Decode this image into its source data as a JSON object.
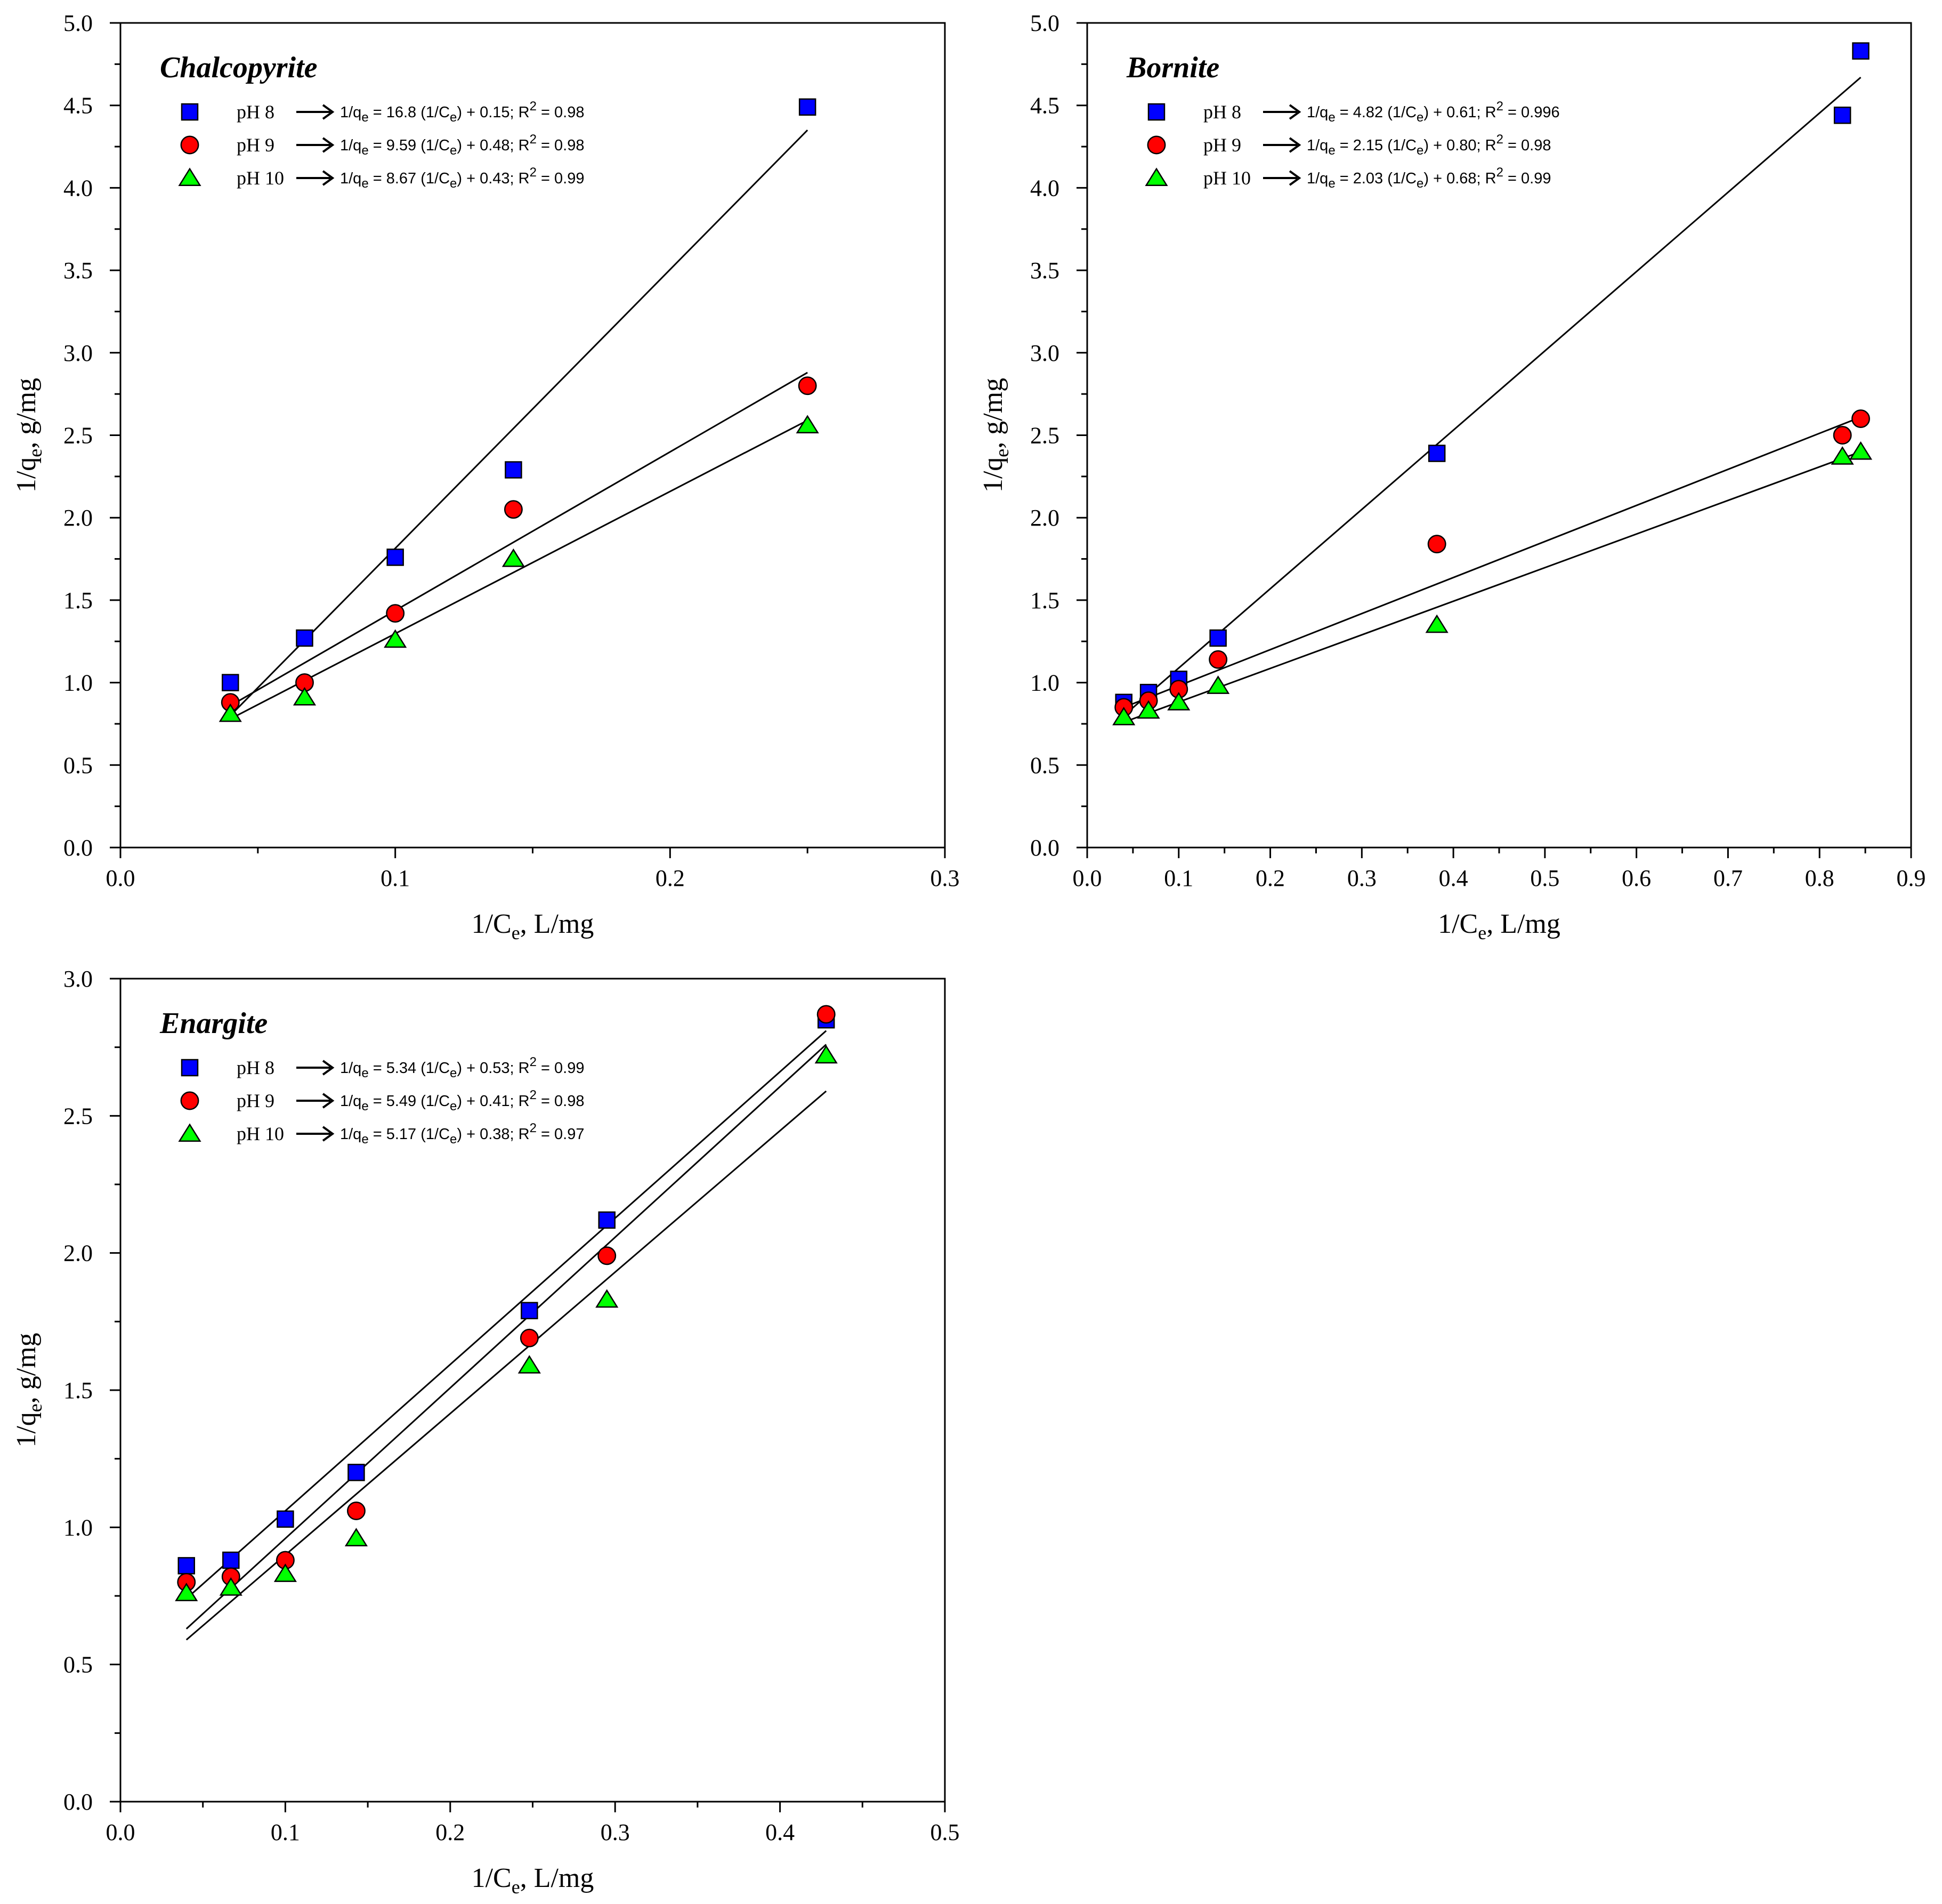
{
  "chart_data": [
    {
      "type": "scatter",
      "title": "Chalcopyrite",
      "xlabel_main": "1/C",
      "xlabel_sub": "e",
      "xlabel_rest": ", L/mg",
      "ylabel_main": "1/q",
      "ylabel_sub": "e",
      "ylabel_rest": ", g/mg",
      "xlim": [
        0,
        0.3
      ],
      "ylim": [
        0,
        5
      ],
      "xticks": [
        "0.0",
        "0.1",
        "0.2",
        "0.3"
      ],
      "xtick_values": [
        0,
        0.1,
        0.2,
        0.3
      ],
      "yticks": [
        "0.0",
        "0.5",
        "1.0",
        "1.5",
        "2.0",
        "2.5",
        "3.0",
        "3.5",
        "4.0",
        "4.5",
        "5.0"
      ],
      "ytick_values": [
        0,
        0.5,
        1,
        1.5,
        2,
        2.5,
        3,
        3.5,
        4,
        4.5,
        5
      ],
      "grid": false,
      "legend_position": "top-left",
      "series": [
        {
          "name": "pH 8",
          "marker": "square",
          "color": "#0000ff",
          "x": [
            0.04,
            0.067,
            0.1,
            0.143,
            0.25
          ],
          "y": [
            1.0,
            1.27,
            1.76,
            2.29,
            4.49
          ],
          "fit": {
            "x": [
              0.04,
              0.25
            ],
            "y": [
              0.8,
              4.35
            ]
          },
          "eq_pre": "1/q",
          "eq_sub": "e",
          "eq_mid": " = 16.8 (1/C",
          "eq_sub2": "e",
          "eq_post": ") + 0.15; R",
          "eq_sup": "2",
          "eq_end": " = 0.98"
        },
        {
          "name": "pH 9",
          "marker": "circle",
          "color": "#ff0000",
          "x": [
            0.04,
            0.067,
            0.1,
            0.143,
            0.25
          ],
          "y": [
            0.88,
            1.0,
            1.42,
            2.05,
            2.8
          ],
          "fit": {
            "x": [
              0.04,
              0.25
            ],
            "y": [
              0.86,
              2.88
            ]
          },
          "eq_pre": "1/q",
          "eq_sub": "e",
          "eq_mid": " = 9.59 (1/C",
          "eq_sub2": "e",
          "eq_post": ") + 0.48; R",
          "eq_sup": "2",
          "eq_end": " = 0.98"
        },
        {
          "name": "pH 10",
          "marker": "triangle",
          "color": "#00ff00",
          "x": [
            0.04,
            0.067,
            0.1,
            0.143,
            0.25
          ],
          "y": [
            0.81,
            0.91,
            1.26,
            1.75,
            2.56
          ],
          "fit": {
            "x": [
              0.04,
              0.25
            ],
            "y": [
              0.78,
              2.59
            ]
          },
          "eq_pre": "1/q",
          "eq_sub": "e",
          "eq_mid": " = 8.67 (1/C",
          "eq_sub2": "e",
          "eq_post": ") + 0.43; R",
          "eq_sup": "2",
          "eq_end": " = 0.99"
        }
      ]
    },
    {
      "type": "scatter",
      "title": "Bornite",
      "xlabel_main": "1/C",
      "xlabel_sub": "e",
      "xlabel_rest": ", L/mg",
      "ylabel_main": "1/q",
      "ylabel_sub": "e",
      "ylabel_rest": ", g/mg",
      "xlim": [
        0,
        0.9
      ],
      "ylim": [
        0,
        5
      ],
      "xticks": [
        "0.0",
        "0.1",
        "0.2",
        "0.3",
        "0.4",
        "0.5",
        "0.6",
        "0.7",
        "0.8",
        "0.9"
      ],
      "xtick_values": [
        0,
        0.1,
        0.2,
        0.3,
        0.4,
        0.5,
        0.6,
        0.7,
        0.8,
        0.9
      ],
      "yticks": [
        "0.0",
        "0.5",
        "1.0",
        "1.5",
        "2.0",
        "2.5",
        "3.0",
        "3.5",
        "4.0",
        "4.5",
        "5.0"
      ],
      "ytick_values": [
        0,
        0.5,
        1,
        1.5,
        2,
        2.5,
        3,
        3.5,
        4,
        4.5,
        5
      ],
      "grid": false,
      "legend_position": "top-left",
      "series": [
        {
          "name": "pH 8",
          "marker": "square",
          "color": "#0000ff",
          "x": [
            0.04,
            0.067,
            0.1,
            0.143,
            0.382,
            0.825,
            0.845
          ],
          "y": [
            0.88,
            0.94,
            1.02,
            1.27,
            2.39,
            4.44,
            4.83
          ],
          "fit": {
            "x": [
              0.04,
              0.845
            ],
            "y": [
              0.8,
              4.67
            ]
          },
          "eq_pre": "1/q",
          "eq_sub": "e",
          "eq_mid": " = 4.82 (1/C",
          "eq_sub2": "e",
          "eq_post": ") + 0.61; R",
          "eq_sup": "2",
          "eq_end": " = 0.996"
        },
        {
          "name": "pH 9",
          "marker": "circle",
          "color": "#ff0000",
          "x": [
            0.04,
            0.067,
            0.1,
            0.143,
            0.382,
            0.825,
            0.845
          ],
          "y": [
            0.85,
            0.89,
            0.96,
            1.14,
            1.84,
            2.5,
            2.6
          ],
          "fit": {
            "x": [
              0.04,
              0.845
            ],
            "y": [
              0.85,
              2.61
            ]
          },
          "eq_pre": "1/q",
          "eq_sub": "e",
          "eq_mid": " = 2.15 (1/C",
          "eq_sub2": "e",
          "eq_post": ") + 0.80; R",
          "eq_sup": "2",
          "eq_end": " = 0.98"
        },
        {
          "name": "pH 10",
          "marker": "triangle",
          "color": "#00ff00",
          "x": [
            0.04,
            0.067,
            0.1,
            0.143,
            0.382,
            0.825,
            0.845
          ],
          "y": [
            0.79,
            0.83,
            0.88,
            0.98,
            1.35,
            2.37,
            2.4
          ],
          "fit": {
            "x": [
              0.04,
              0.845
            ],
            "y": [
              0.76,
              2.4
            ]
          },
          "eq_pre": "1/q",
          "eq_sub": "e",
          "eq_mid": " = 2.03 (1/C",
          "eq_sub2": "e",
          "eq_post": ") + 0.68; R",
          "eq_sup": "2",
          "eq_end": " = 0.99"
        }
      ]
    },
    {
      "type": "scatter",
      "title": "Enargite",
      "xlabel_main": "1/C",
      "xlabel_sub": "e",
      "xlabel_rest": ", L/mg",
      "ylabel_main": "1/q",
      "ylabel_sub": "e",
      "ylabel_rest": ", g/mg",
      "xlim": [
        0,
        0.5
      ],
      "ylim": [
        0,
        3
      ],
      "xticks": [
        "0.0",
        "0.1",
        "0.2",
        "0.3",
        "0.4",
        "0.5"
      ],
      "xtick_values": [
        0,
        0.1,
        0.2,
        0.3,
        0.4,
        0.5
      ],
      "yticks": [
        "0.0",
        "0.5",
        "1.0",
        "1.5",
        "2.0",
        "2.5",
        "3.0"
      ],
      "ytick_values": [
        0,
        0.5,
        1,
        1.5,
        2,
        2.5,
        3
      ],
      "grid": false,
      "legend_position": "top-left",
      "series": [
        {
          "name": "pH 8",
          "marker": "square",
          "color": "#0000ff",
          "x": [
            0.04,
            0.067,
            0.1,
            0.143,
            0.248,
            0.295,
            0.428
          ],
          "y": [
            0.86,
            0.88,
            1.03,
            1.2,
            1.79,
            2.12,
            2.85
          ],
          "fit": {
            "x": [
              0.04,
              0.428
            ],
            "y": [
              0.74,
              2.81
            ]
          },
          "eq_pre": "1/q",
          "eq_sub": "e",
          "eq_mid": " = 5.34 (1/C",
          "eq_sub2": "e",
          "eq_post": ") + 0.53; R",
          "eq_sup": "2",
          "eq_end": " = 0.99"
        },
        {
          "name": "pH 9",
          "marker": "circle",
          "color": "#ff0000",
          "x": [
            0.04,
            0.067,
            0.1,
            0.143,
            0.248,
            0.295,
            0.428
          ],
          "y": [
            0.8,
            0.82,
            0.88,
            1.06,
            1.69,
            1.99,
            2.87
          ],
          "fit": {
            "x": [
              0.04,
              0.428
            ],
            "y": [
              0.63,
              2.76
            ]
          },
          "eq_pre": "1/q",
          "eq_sub": "e",
          "eq_mid": " = 5.49 (1/C",
          "eq_sub2": "e",
          "eq_post": ") + 0.41; R",
          "eq_sup": "2",
          "eq_end": " = 0.98"
        },
        {
          "name": "pH 10",
          "marker": "triangle",
          "color": "#00ff00",
          "x": [
            0.04,
            0.067,
            0.1,
            0.143,
            0.248,
            0.295,
            0.428
          ],
          "y": [
            0.76,
            0.78,
            0.83,
            0.96,
            1.59,
            1.83,
            2.72
          ],
          "fit": {
            "x": [
              0.04,
              0.428
            ],
            "y": [
              0.59,
              2.59
            ]
          },
          "eq_pre": "1/q",
          "eq_sub": "e",
          "eq_mid": " = 5.17 (1/C",
          "eq_sub2": "e",
          "eq_post": ") + 0.38; R",
          "eq_sup": "2",
          "eq_end": " = 0.97"
        }
      ]
    }
  ]
}
